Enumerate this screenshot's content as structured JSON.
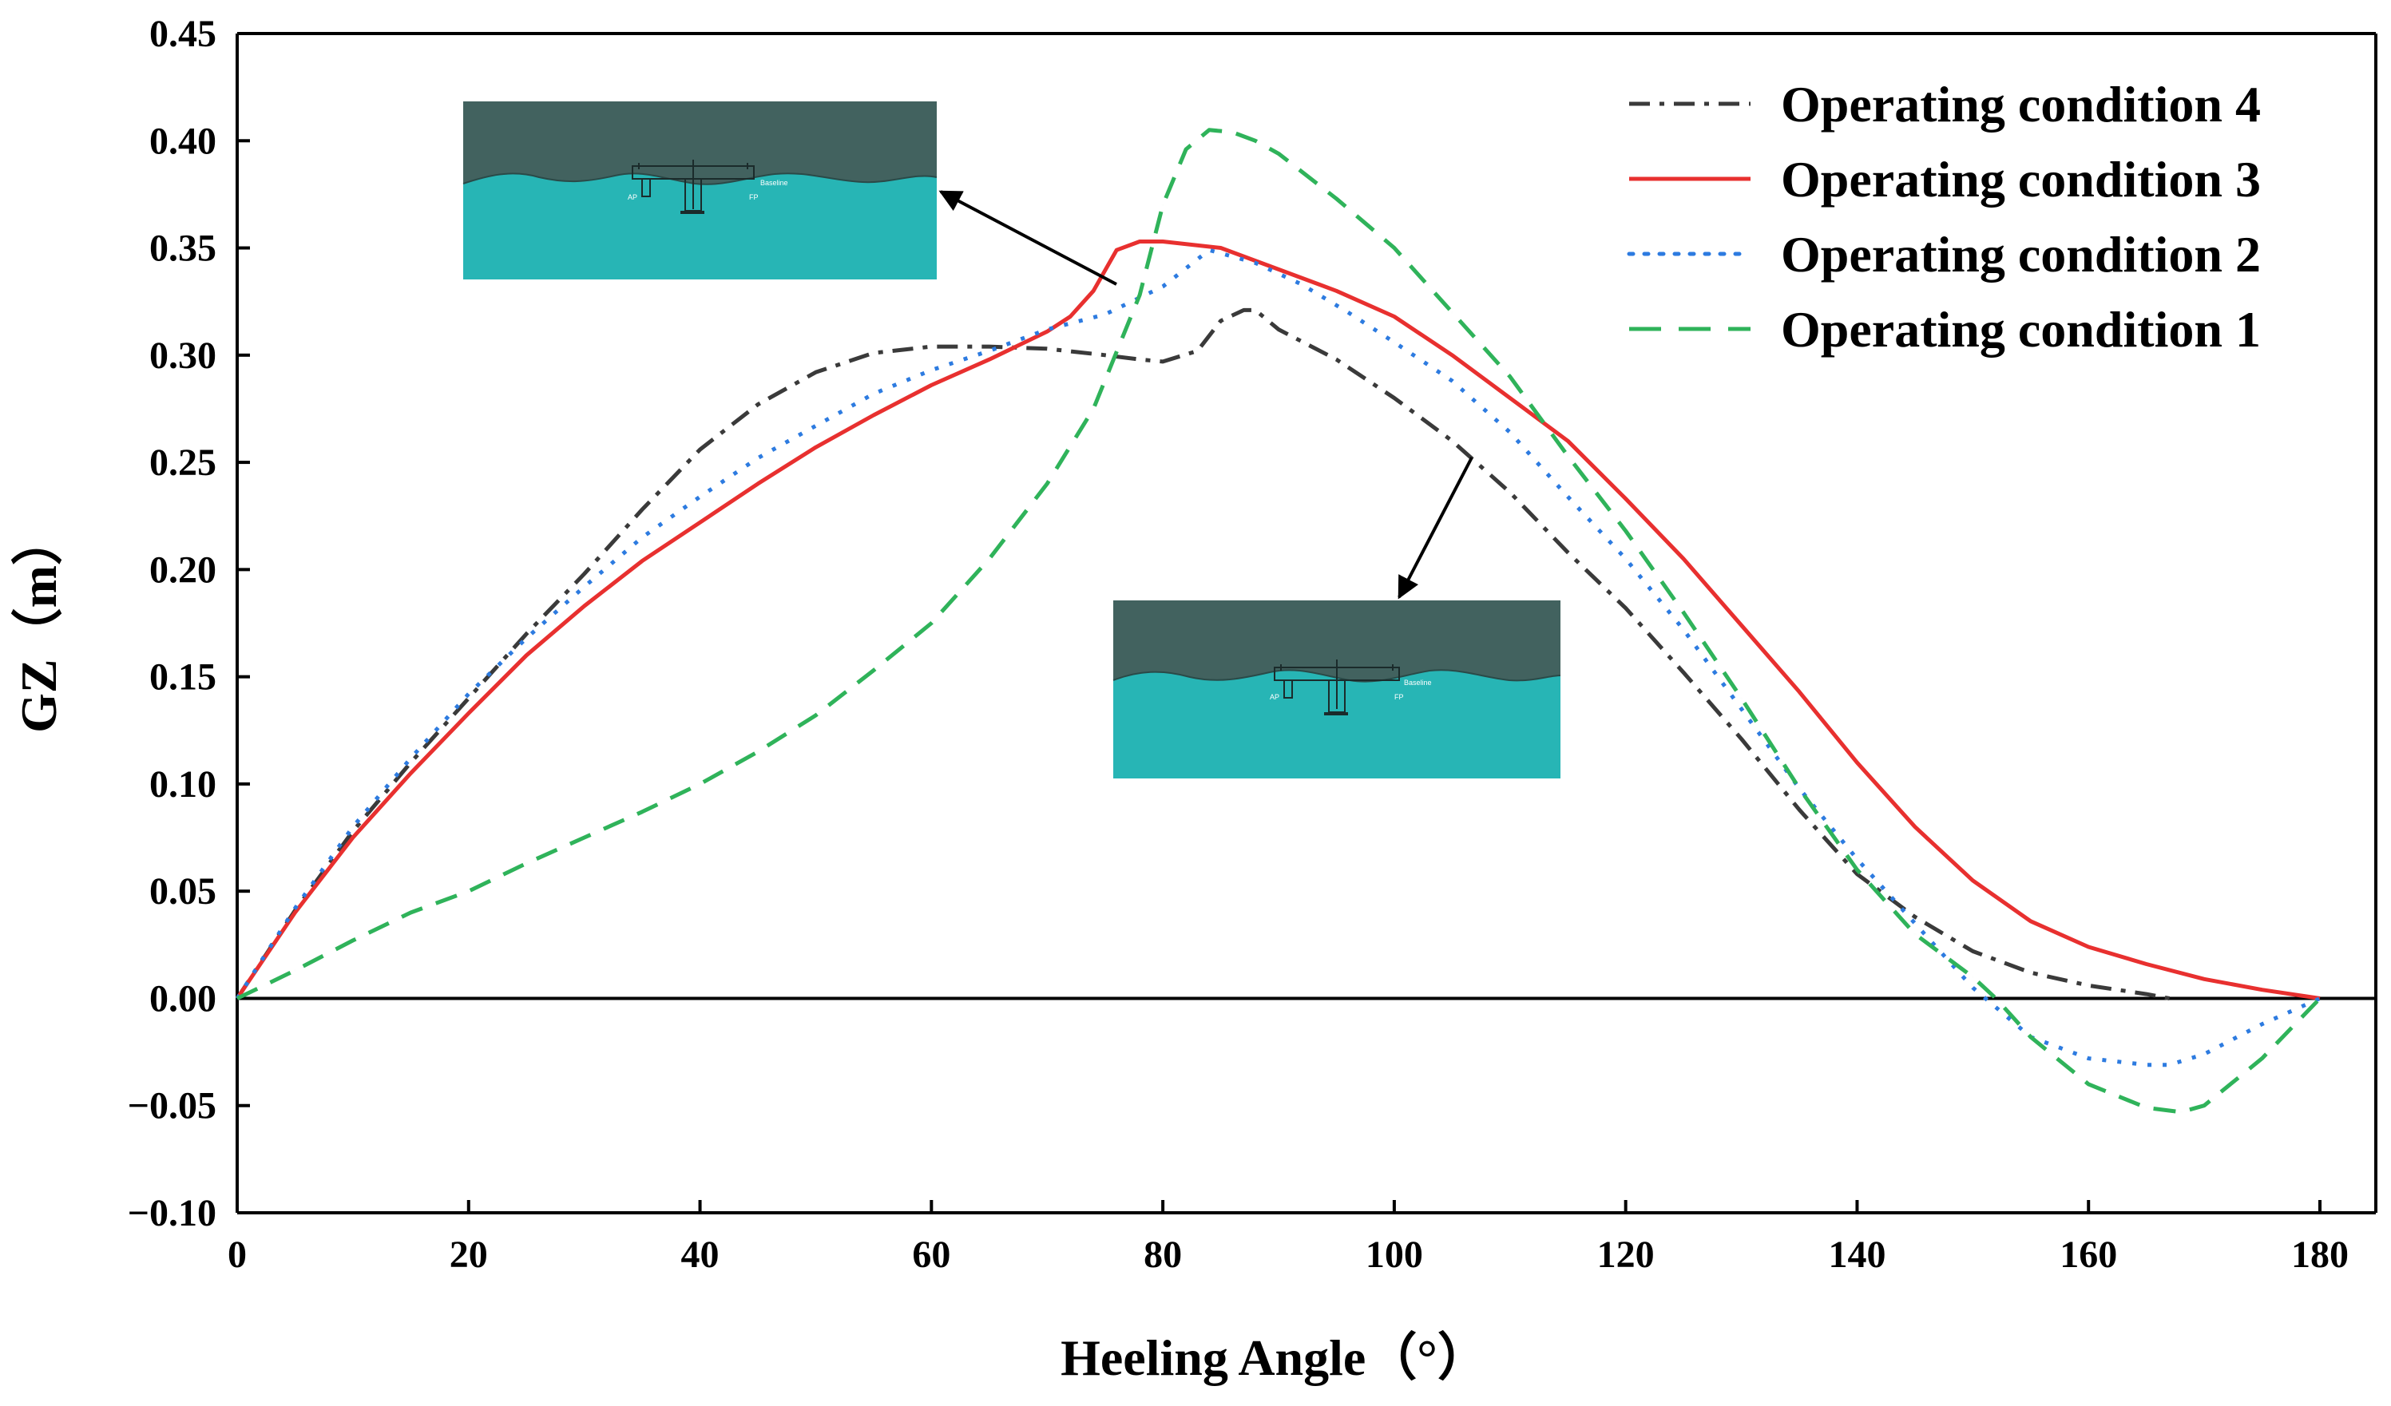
{
  "chart_data": {
    "type": "line",
    "title": "",
    "xlabel": "Heeling Angle（°）",
    "ylabel": "GZ（m）",
    "xlim": [
      0,
      180
    ],
    "ylim": [
      -0.1,
      0.45
    ],
    "xticks": [
      0,
      20,
      40,
      60,
      80,
      100,
      120,
      140,
      160,
      180
    ],
    "yticks": [
      -0.1,
      -0.05,
      0.0,
      0.05,
      0.1,
      0.15,
      0.2,
      0.25,
      0.3,
      0.35,
      0.4,
      0.45
    ],
    "xtick_labels": [
      "0",
      "20",
      "40",
      "60",
      "80",
      "100",
      "120",
      "140",
      "160",
      "180"
    ],
    "ytick_labels": [
      "−0.10",
      "−0.05",
      "0.00",
      "0.05",
      "0.10",
      "0.15",
      "0.20",
      "0.25",
      "0.30",
      "0.35",
      "0.40",
      "0.45"
    ],
    "grid": false,
    "legend_position": "top-right",
    "series": [
      {
        "name": "Operating condition 4",
        "color": "#3a3a3a",
        "style": "dashdot",
        "x": [
          0,
          5,
          10,
          15,
          20,
          25,
          30,
          35,
          40,
          45,
          50,
          55,
          60,
          65,
          70,
          75,
          78,
          80,
          83,
          85,
          87,
          88,
          90,
          95,
          100,
          105,
          110,
          115,
          120,
          125,
          130,
          135,
          140,
          145,
          150,
          155,
          160,
          165,
          167
        ],
        "y": [
          0,
          0.041,
          0.078,
          0.11,
          0.14,
          0.17,
          0.198,
          0.228,
          0.256,
          0.277,
          0.292,
          0.301,
          0.304,
          0.304,
          0.303,
          0.3,
          0.298,
          0.297,
          0.302,
          0.316,
          0.321,
          0.321,
          0.312,
          0.298,
          0.28,
          0.26,
          0.236,
          0.208,
          0.182,
          0.152,
          0.121,
          0.088,
          0.058,
          0.038,
          0.022,
          0.012,
          0.006,
          0.002,
          0.0
        ]
      },
      {
        "name": "Operating condition 3",
        "color": "#e8302f",
        "style": "solid",
        "x": [
          0,
          5,
          10,
          15,
          20,
          25,
          30,
          35,
          40,
          45,
          50,
          55,
          60,
          65,
          70,
          72,
          74,
          76,
          78,
          80,
          85,
          90,
          95,
          100,
          105,
          110,
          115,
          120,
          125,
          130,
          135,
          140,
          145,
          150,
          155,
          160,
          165,
          170,
          175,
          180
        ],
        "y": [
          0,
          0.04,
          0.075,
          0.105,
          0.133,
          0.16,
          0.183,
          0.204,
          0.222,
          0.24,
          0.257,
          0.272,
          0.286,
          0.298,
          0.311,
          0.318,
          0.33,
          0.349,
          0.353,
          0.353,
          0.35,
          0.34,
          0.33,
          0.318,
          0.3,
          0.28,
          0.26,
          0.233,
          0.205,
          0.174,
          0.143,
          0.11,
          0.08,
          0.055,
          0.036,
          0.024,
          0.016,
          0.009,
          0.004,
          0.0
        ]
      },
      {
        "name": "Operating condition 2",
        "color": "#2d7be0",
        "style": "dotted",
        "x": [
          0,
          5,
          10,
          15,
          20,
          25,
          30,
          35,
          40,
          45,
          50,
          55,
          60,
          65,
          70,
          75,
          80,
          84,
          88,
          92,
          96,
          100,
          105,
          110,
          115,
          120,
          125,
          130,
          135,
          140,
          145,
          150,
          155,
          160,
          165,
          167,
          170,
          175,
          180
        ],
        "y": [
          0,
          0.042,
          0.08,
          0.112,
          0.142,
          0.168,
          0.192,
          0.215,
          0.234,
          0.252,
          0.267,
          0.282,
          0.293,
          0.302,
          0.312,
          0.319,
          0.332,
          0.349,
          0.343,
          0.333,
          0.32,
          0.306,
          0.288,
          0.264,
          0.234,
          0.205,
          0.172,
          0.135,
          0.098,
          0.065,
          0.035,
          0.005,
          -0.018,
          -0.028,
          -0.031,
          -0.031,
          -0.026,
          -0.012,
          0.0
        ]
      },
      {
        "name": "Operating condition 1",
        "color": "#2fb35a",
        "style": "dashed",
        "x": [
          0,
          5,
          10,
          15,
          20,
          25,
          30,
          35,
          40,
          45,
          50,
          55,
          60,
          65,
          70,
          74,
          78,
          80,
          82,
          84,
          86,
          88,
          90,
          95,
          100,
          105,
          110,
          115,
          120,
          125,
          130,
          135,
          140,
          145,
          150,
          152,
          155,
          160,
          165,
          168,
          170,
          175,
          180
        ],
        "y": [
          0,
          0.013,
          0.027,
          0.04,
          0.05,
          0.063,
          0.075,
          0.087,
          0.1,
          0.115,
          0.132,
          0.153,
          0.175,
          0.205,
          0.24,
          0.275,
          0.328,
          0.37,
          0.396,
          0.405,
          0.404,
          0.4,
          0.394,
          0.373,
          0.35,
          0.32,
          0.29,
          0.253,
          0.218,
          0.18,
          0.14,
          0.098,
          0.06,
          0.03,
          0.01,
          0.0,
          -0.018,
          -0.04,
          -0.051,
          -0.053,
          -0.05,
          -0.028,
          0.0
        ]
      }
    ],
    "legend_order": [
      0,
      1,
      2,
      3
    ],
    "annotations": [
      {
        "name": "inset-upper",
        "arrow_to_series": "Operating condition 3",
        "target_x": 77
      },
      {
        "name": "inset-lower",
        "arrow_to_series": "Operating condition 4",
        "target_x": 107
      }
    ]
  },
  "insets": {
    "sky_color": "#42625f",
    "water_color": "#27b5b5",
    "labels": [
      "AP",
      "FP",
      "Baseline"
    ]
  }
}
